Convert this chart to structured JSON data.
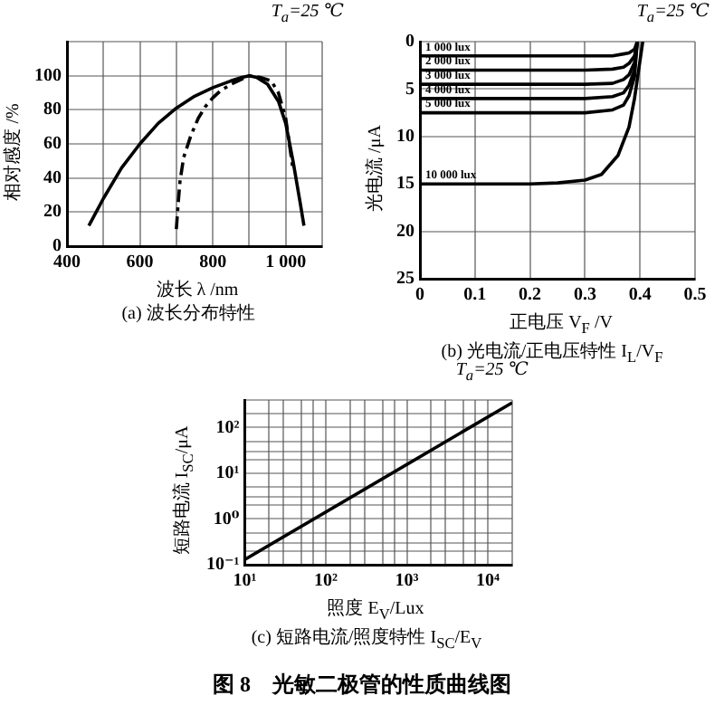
{
  "chart_data": [
    {
      "type": "line",
      "title": "(a) 波长分布特性",
      "xlabel": "波长 λ /nm",
      "ylabel": "相对感度 /%",
      "annotations": [
        "T$_{a}$=25 ℃"
      ],
      "xlim": [
        400,
        1100
      ],
      "xticks": [
        400,
        600,
        800,
        {
          "value": 1000,
          "label": "1 000"
        },
        {
          "value": 500,
          "label": null
        },
        {
          "value": 700,
          "label": null
        },
        {
          "value": 900,
          "label": null
        },
        {
          "value": 1100,
          "label": null
        }
      ],
      "ylim": [
        0,
        120
      ],
      "yticks": [
        0,
        20,
        40,
        60,
        80,
        100,
        {
          "value": 120,
          "label": null
        }
      ],
      "grid": true,
      "legend": false,
      "marker": "none",
      "series": [
        {
          "color": "#000000",
          "line_style": "solid",
          "x": [
            460,
            480,
            500,
            550,
            600,
            650,
            700,
            750,
            800,
            850,
            880,
            900,
            920,
            950,
            980,
            1000,
            1020,
            1040,
            1050
          ],
          "values": [
            12,
            20,
            28,
            46,
            60,
            72,
            81,
            88,
            93,
            97,
            99,
            100,
            99,
            95,
            85,
            72,
            50,
            25,
            12
          ]
        },
        {
          "color": "#000000",
          "line_style": "dashed",
          "x": [
            700,
            705,
            710,
            720,
            740,
            760,
            780,
            800,
            820,
            850,
            880,
            900,
            930,
            960,
            980,
            1000,
            1010,
            1020
          ],
          "values": [
            10,
            25,
            38,
            52,
            65,
            75,
            82,
            87,
            91,
            95,
            98,
            100,
            99,
            97,
            90,
            75,
            60,
            45
          ]
        }
      ]
    },
    {
      "type": "line",
      "title": "(b) 光电流/正电压特性 I$_{L}$/V$_{F}$",
      "xlabel": "正电压 V$_{F}$ /V",
      "ylabel": "光电流 /μA",
      "annotations": [
        "T$_{a}$=25 ℃"
      ],
      "xlim": [
        0,
        0.5
      ],
      "xticks": [
        0,
        0.1,
        0.2,
        0.3,
        0.4,
        0.5
      ],
      "ylim": [
        25,
        0
      ],
      "yticks": [
        0,
        5,
        10,
        15,
        20,
        25
      ],
      "grid": true,
      "legend": false,
      "marker": "none",
      "series": [
        {
          "name": "1 000 lux",
          "color": "#000000",
          "x": [
            0,
            0.3,
            0.35,
            0.37,
            0.38,
            0.39,
            0.395
          ],
          "values": [
            1.5,
            1.5,
            1.5,
            1.3,
            1.2,
            0.8,
            0
          ]
        },
        {
          "name": "2 000 lux",
          "color": "#000000",
          "x": [
            0,
            0.3,
            0.35,
            0.37,
            0.38,
            0.39,
            0.395
          ],
          "values": [
            3,
            3,
            2.9,
            2.7,
            2.3,
            1.5,
            0
          ]
        },
        {
          "name": "3 000 lux",
          "color": "#000000",
          "x": [
            0,
            0.3,
            0.35,
            0.37,
            0.38,
            0.39,
            0.395
          ],
          "values": [
            4.5,
            4.5,
            4.4,
            4,
            3.5,
            2.2,
            0
          ]
        },
        {
          "name": "4 000 lux",
          "color": "#000000",
          "x": [
            0,
            0.3,
            0.35,
            0.37,
            0.38,
            0.39,
            0.395
          ],
          "values": [
            6,
            6,
            5.8,
            5.4,
            4.6,
            3,
            0
          ]
        },
        {
          "name": "5 000 lux",
          "color": "#000000",
          "x": [
            0,
            0.3,
            0.35,
            0.37,
            0.38,
            0.39,
            0.395
          ],
          "values": [
            7.5,
            7.5,
            7.2,
            6.7,
            5.7,
            3.7,
            0
          ]
        },
        {
          "name": "10 000 lux",
          "color": "#000000",
          "x": [
            0,
            0.1,
            0.2,
            0.25,
            0.3,
            0.33,
            0.36,
            0.38,
            0.39,
            0.4,
            0.405
          ],
          "values": [
            15,
            15,
            15,
            14.9,
            14.6,
            14,
            12,
            9,
            6,
            2,
            0
          ]
        }
      ]
    },
    {
      "type": "line",
      "title": "(c) 短路电流/照度特性 I$_{SC}$/E$_{V}$",
      "xlabel": "照度 E$_{V}$/Lux",
      "ylabel": "短路电流 I$_{SC}$/μA",
      "annotations": [
        "T$_{a}$=25 ℃",
        "图 8　光敏二极管的性质曲线图"
      ],
      "log": "xy",
      "xlim": [
        10,
        20000
      ],
      "xticks": [
        {
          "value": 10,
          "label": "10¹"
        },
        {
          "value": 100,
          "label": "10²"
        },
        {
          "value": 1000,
          "label": "10³"
        },
        {
          "value": 10000,
          "label": "10⁴"
        },
        {
          "value": 20,
          "label": null
        },
        {
          "value": 30,
          "label": null
        },
        {
          "value": 50,
          "label": null
        },
        {
          "value": 70,
          "label": null
        },
        {
          "value": 200,
          "label": null
        },
        {
          "value": 300,
          "label": null
        },
        {
          "value": 500,
          "label": null
        },
        {
          "value": 700,
          "label": null
        },
        {
          "value": 2000,
          "label": null
        },
        {
          "value": 3000,
          "label": null
        },
        {
          "value": 5000,
          "label": null
        },
        {
          "value": 7000,
          "label": null
        },
        {
          "value": 20000,
          "label": null
        }
      ],
      "ylim": [
        0.1,
        400
      ],
      "yticks": [
        {
          "value": 0.1,
          "label": "10⁻¹"
        },
        {
          "value": 1,
          "label": "10⁰"
        },
        {
          "value": 10,
          "label": "10¹"
        },
        {
          "value": 100,
          "label": "10²"
        },
        {
          "value": 0.2,
          "label": null
        },
        {
          "value": 0.3,
          "label": null
        },
        {
          "value": 0.5,
          "label": null
        },
        {
          "value": 2,
          "label": null
        },
        {
          "value": 3,
          "label": null
        },
        {
          "value": 5,
          "label": null
        },
        {
          "value": 20,
          "label": null
        },
        {
          "value": 30,
          "label": null
        },
        {
          "value": 50,
          "label": null
        },
        {
          "value": 200,
          "label": null
        },
        {
          "value": 400,
          "label": null
        }
      ],
      "grid": true,
      "legend": false,
      "marker": "none",
      "series": [
        {
          "color": "#000000",
          "x": [
            10,
            20000
          ],
          "values": [
            0.13,
            350
          ]
        }
      ]
    }
  ]
}
